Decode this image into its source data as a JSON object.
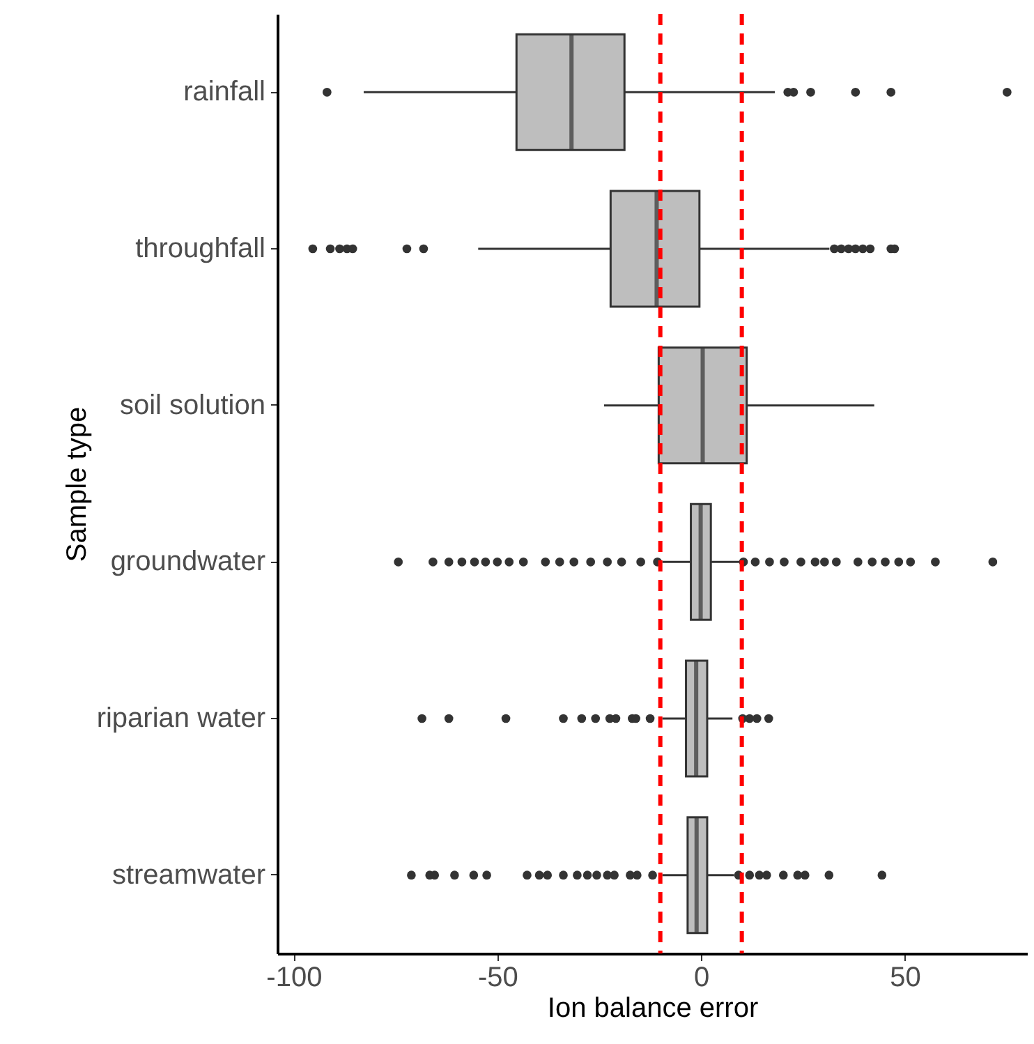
{
  "chart_data": {
    "type": "box",
    "xlabel": "Ion balance error",
    "ylabel": "Sample type",
    "orientation": "horizontal",
    "categories": [
      "rainfall",
      "throughfall",
      "soil solution",
      "groundwater",
      "riparian water",
      "streamwater"
    ],
    "colors": [
      "#bebebe",
      "#bebebe",
      "#bebebe",
      "#bebebe",
      "#bebebe",
      "#bebebe"
    ],
    "boxes": [
      {
        "low": -82.8,
        "q1": -45.3,
        "median": -31.8,
        "q3": -18.8,
        "high": 18.1,
        "outliers": [
          -91.8,
          21.3,
          22.7,
          26.9,
          37.9,
          46.6,
          75.1
        ]
      },
      {
        "low": -54.7,
        "q1": -22.2,
        "median": -10.9,
        "q3": -0.4,
        "high": 31.5,
        "outliers": [
          -95.3,
          -91,
          -88.7,
          -86.9,
          -85.5,
          -72.2,
          -68.1,
          32.7,
          34.4,
          36.2,
          37.9,
          39.7,
          41.5,
          46.6,
          47.5
        ]
      },
      {
        "low": -23.8,
        "q1": -10.4,
        "median": 0.4,
        "q3": 11.2,
        "high": 42.5
      },
      {
        "low": -9.5,
        "q1": -2.5,
        "median": -0.1,
        "q3": 2.4,
        "high": 9.6,
        "outliers": [
          -74.3,
          -65.8,
          -61.9,
          -58.7,
          -55.6,
          -52.9,
          -50,
          -47.1,
          -43.6,
          -38.2,
          -34.7,
          -31.2,
          -27.1,
          -23,
          -19.5,
          -14.8,
          -10.7,
          10.4,
          13.3,
          16.8,
          20.4,
          24.5,
          28,
          30.3,
          33.2,
          38.5,
          42,
          45.2,
          48.5,
          51.4,
          57.5,
          71.6
        ]
      },
      {
        "low": -9.5,
        "q1": -3.7,
        "median": -1.2,
        "q3": 1.5,
        "high": 7.7,
        "outliers": [
          -68.5,
          -61.9,
          -47.9,
          -33.8,
          -29.3,
          -25.9,
          -22.4,
          -20.9,
          -16.9,
          -16,
          -12.5,
          10.2,
          11.9,
          13.7,
          16.6
        ]
      },
      {
        "low": -9.5,
        "q1": -3.3,
        "median": -1.1,
        "q3": 1.5,
        "high": 8.1,
        "outliers": [
          -71.1,
          -66.6,
          -65.4,
          -60.5,
          -55.8,
          -52.6,
          -42.7,
          -39.7,
          -37.7,
          -33.8,
          -30.4,
          -27.9,
          -25.6,
          -23,
          -21.3,
          -17.4,
          -15.7,
          -11.9,
          9.2,
          11.9,
          14.3,
          16.1,
          20.2,
          23.7,
          25.5,
          31.4,
          44.4
        ]
      }
    ],
    "xlim": [
      -104,
      80
    ],
    "xticks": [
      -100,
      -50,
      0,
      50
    ],
    "ref_lines": [
      {
        "axis": "x",
        "value": -10,
        "color": "#ff0000",
        "line_style": "dashed"
      },
      {
        "axis": "x",
        "value": 10,
        "color": "#ff0000",
        "line_style": "dashed"
      }
    ]
  }
}
